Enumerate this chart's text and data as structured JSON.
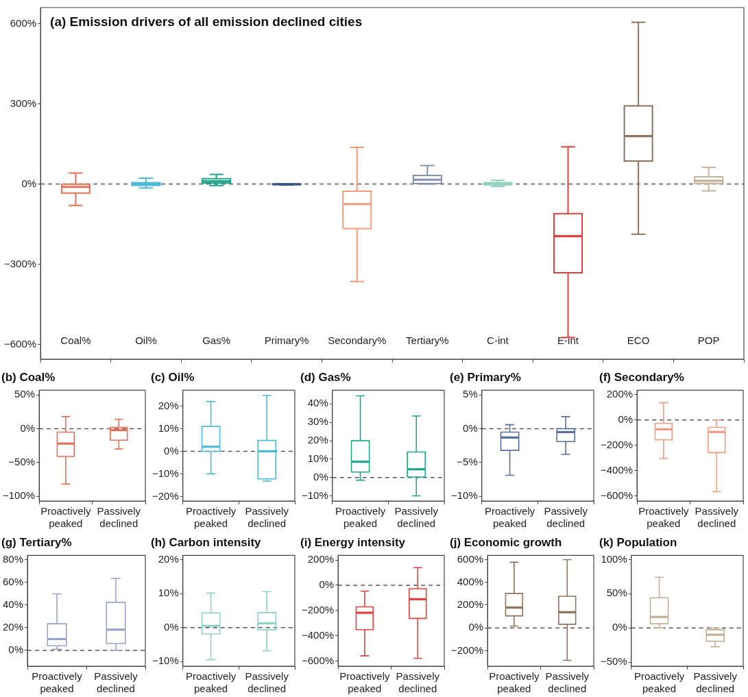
{
  "chart_data": [
    {
      "type": "box",
      "title": "(a) Emission drivers of all emission declined cities",
      "categories": [
        "Coal%",
        "Oil%",
        "Gas%",
        "Primary%",
        "Secondary%",
        "Tertiary%",
        "C-int",
        "E-int",
        "ECO",
        "POP"
      ],
      "boxes": [
        {
          "low": -80,
          "q1": -34,
          "median": -11,
          "q3": -1,
          "high": 41
        },
        {
          "low": -15,
          "q1": -5,
          "median": 0,
          "q3": 5,
          "high": 22
        },
        {
          "low": -6,
          "q1": 3,
          "median": 10,
          "q3": 20,
          "high": 36
        },
        {
          "low": -4,
          "q1": -2,
          "median": -1,
          "q3": 0,
          "high": 1
        },
        {
          "low": -365,
          "q1": -167,
          "median": -75,
          "q3": -27,
          "high": 137
        },
        {
          "low": 0,
          "q1": 2,
          "median": 16,
          "q3": 32,
          "high": 69
        },
        {
          "low": -9,
          "q1": -3,
          "median": 1,
          "q3": 5,
          "high": 14
        },
        {
          "low": -574,
          "q1": -332,
          "median": -195,
          "q3": -111,
          "high": 139
        },
        {
          "low": -188,
          "q1": 86,
          "median": 179,
          "q3": 292,
          "high": 605
        },
        {
          "low": -26,
          "q1": 2,
          "median": 12,
          "q3": 27,
          "high": 62
        }
      ],
      "colors": [
        "#e8705a",
        "#4dbbd5",
        "#1fa68c",
        "#3c5488",
        "#f39b7f",
        "#8491b4",
        "#91d1c2",
        "#e04040",
        "#8c735c",
        "#c4b09a"
      ],
      "ylim": [
        -655,
        660
      ],
      "yticks": [
        {
          "value": -600,
          "label": "−600%"
        },
        {
          "value": -300,
          "label": "−300%"
        },
        {
          "value": 0,
          "label": "0%"
        },
        {
          "value": 300,
          "label": "300%"
        },
        {
          "value": 600,
          "label": "600%"
        }
      ],
      "ref_lines": [
        {
          "axis": "y",
          "value": 0,
          "color": "#555555",
          "line_style": "dashed"
        }
      ]
    },
    {
      "type": "box",
      "title": "(b) Coal%",
      "categories": [
        "Proactively peaked",
        "Passively declined"
      ],
      "boxes": [
        {
          "low": -82,
          "q1": -41,
          "median": -22,
          "q3": -5,
          "high": 18
        },
        {
          "low": -30,
          "q1": -17,
          "median": -2,
          "q3": 2,
          "high": 14
        }
      ],
      "color": "#e8705a",
      "ylim": [
        -107,
        57
      ],
      "yticks": [
        {
          "value": -100,
          "label": "−100%"
        },
        {
          "value": -50,
          "label": "−50%"
        },
        {
          "value": 0,
          "label": "0%"
        },
        {
          "value": 50,
          "label": "50%"
        }
      ],
      "ref_lines": [
        {
          "axis": "y",
          "value": 0,
          "color": "#555555",
          "line_style": "dashed"
        }
      ]
    },
    {
      "type": "box",
      "title": "(c) Oil%",
      "categories": [
        "Proactively peaked",
        "Passively declined"
      ],
      "boxes": [
        {
          "low": -10,
          "q1": 0,
          "median": 2,
          "q3": 11,
          "high": 22
        },
        {
          "low": -13.2,
          "q1": -12.2,
          "median": 0,
          "q3": 4.8,
          "high": 24.7
        }
      ],
      "color": "#4dbbd5",
      "ylim": [
        -22,
        27
      ],
      "yticks": [
        {
          "value": -20,
          "label": "−20%"
        },
        {
          "value": -10,
          "label": "−10%"
        },
        {
          "value": 0,
          "label": "0%"
        },
        {
          "value": 10,
          "label": "10%"
        },
        {
          "value": 20,
          "label": "20%"
        }
      ],
      "ref_lines": [
        {
          "axis": "y",
          "value": 0,
          "color": "#555555",
          "line_style": "dashed"
        }
      ]
    },
    {
      "type": "box",
      "title": "(d) Gas%",
      "categories": [
        "Proactively peaked",
        "Passively declined"
      ],
      "boxes": [
        {
          "low": -1.4,
          "q1": 3,
          "median": 8.6,
          "q3": 20,
          "high": 44.4
        },
        {
          "low": -9.9,
          "q1": 0.3,
          "median": 4.5,
          "q3": 13.9,
          "high": 33.4
        }
      ],
      "color": "#1fa68c",
      "ylim": [
        -12.7,
        47.4
      ],
      "yticks": [
        {
          "value": -10,
          "label": "−10%"
        },
        {
          "value": 0,
          "label": "0%"
        },
        {
          "value": 10,
          "label": "10%"
        },
        {
          "value": 20,
          "label": "20%"
        },
        {
          "value": 30,
          "label": "30%"
        },
        {
          "value": 40,
          "label": "40%"
        }
      ],
      "ref_lines": [
        {
          "axis": "y",
          "value": 0,
          "color": "#555555",
          "line_style": "dashed"
        }
      ]
    },
    {
      "type": "box",
      "title": "(e) Primary%",
      "categories": [
        "Proactively peaked",
        "Passively declined"
      ],
      "boxes": [
        {
          "low": -6.9,
          "q1": -3.2,
          "median": -1.3,
          "q3": -0.5,
          "high": 0.6
        },
        {
          "low": -3.8,
          "q1": -1.9,
          "median": -0.5,
          "q3": 0,
          "high": 1.8
        }
      ],
      "color": "#5a6e9c",
      "ylim": [
        -10.7,
        5.7
      ],
      "yticks": [
        {
          "value": -10,
          "label": "−10%"
        },
        {
          "value": -5,
          "label": "−5%"
        },
        {
          "value": 0,
          "label": "0%"
        },
        {
          "value": 5,
          "label": "5%"
        }
      ],
      "ref_lines": [
        {
          "axis": "y",
          "value": 0,
          "color": "#555555",
          "line_style": "dashed"
        }
      ]
    },
    {
      "type": "box",
      "title": "(f) Secondary%",
      "categories": [
        "Proactively peaked",
        "Passively declined"
      ],
      "boxes": [
        {
          "low": -305,
          "q1": -157,
          "median": -74,
          "q3": -27,
          "high": 136
        },
        {
          "low": -567,
          "q1": -258,
          "median": -95,
          "q3": -58,
          "high": 0
        }
      ],
      "color": "#f39b7f",
      "ylim": [
        -641,
        235
      ],
      "yticks": [
        {
          "value": -600,
          "label": "−600%"
        },
        {
          "value": -400,
          "label": "−400%"
        },
        {
          "value": -200,
          "label": "−200%"
        },
        {
          "value": 0,
          "label": "0%"
        },
        {
          "value": 200,
          "label": "200%"
        }
      ],
      "ref_lines": [
        {
          "axis": "y",
          "value": 0,
          "color": "#555555",
          "line_style": "dashed"
        }
      ]
    },
    {
      "type": "box",
      "title": "(g) Tertiary%",
      "categories": [
        "Proactively peaked",
        "Passively declined"
      ],
      "boxes": [
        {
          "low": 1,
          "q1": 4,
          "median": 10,
          "q3": 23.5,
          "high": 50
        },
        {
          "low": 0,
          "q1": 6,
          "median": 18.3,
          "q3": 42.5,
          "high": 63.6
        }
      ],
      "color": "#9aa3c8",
      "ylim": [
        -14,
        84
      ],
      "yticks": [
        {
          "value": 0,
          "label": "0%"
        },
        {
          "value": 20,
          "label": "20%"
        },
        {
          "value": 40,
          "label": "40%"
        },
        {
          "value": 60,
          "label": "60%"
        },
        {
          "value": 80,
          "label": "80%"
        }
      ],
      "ref_lines": [
        {
          "axis": "y",
          "value": 0,
          "color": "#555555",
          "line_style": "dashed"
        }
      ]
    },
    {
      "type": "box",
      "title": "(h) Carbon intensity",
      "categories": [
        "Proactively peaked",
        "Passively declined"
      ],
      "boxes": [
        {
          "low": -9.5,
          "q1": -1.9,
          "median": 0.5,
          "q3": 4.3,
          "high": 10.2
        },
        {
          "low": -6.9,
          "q1": -0.7,
          "median": 1.25,
          "q3": 4.4,
          "high": 10.6
        }
      ],
      "color": "#91d1c2",
      "ylim": [
        -11.4,
        21.3
      ],
      "yticks": [
        {
          "value": -10,
          "label": "−10%"
        },
        {
          "value": 0,
          "label": "0%"
        },
        {
          "value": 10,
          "label": "10%"
        },
        {
          "value": 20,
          "label": "20%"
        }
      ],
      "ref_lines": [
        {
          "axis": "y",
          "value": 0,
          "color": "#555555",
          "line_style": "dashed"
        }
      ]
    },
    {
      "type": "box",
      "title": "(i) Energy intensity",
      "categories": [
        "Proactively peaked",
        "Passively declined"
      ],
      "boxes": [
        {
          "low": -557,
          "q1": -351,
          "median": -217,
          "q3": -171,
          "high": -46
        },
        {
          "low": -577,
          "q1": -262,
          "median": -110,
          "q3": -27,
          "high": 139
        }
      ],
      "color": "#e04040",
      "ylim": [
        -639,
        236
      ],
      "yticks": [
        {
          "value": -600,
          "label": "−600%"
        },
        {
          "value": -400,
          "label": "−400%"
        },
        {
          "value": -200,
          "label": "−200%"
        },
        {
          "value": 0,
          "label": "0%"
        },
        {
          "value": 200,
          "label": "200%"
        }
      ],
      "ref_lines": [
        {
          "axis": "y",
          "value": 0,
          "color": "#555555",
          "line_style": "dashed"
        }
      ]
    },
    {
      "type": "box",
      "title": "(j) Economic growth",
      "categories": [
        "Proactively peaked",
        "Passively declined"
      ],
      "boxes": [
        {
          "low": 16,
          "q1": 106,
          "median": 179,
          "q3": 303,
          "high": 577
        },
        {
          "low": -285,
          "q1": 32,
          "median": 138,
          "q3": 278,
          "high": 600
        }
      ],
      "color": "#8c735c",
      "ylim": [
        -336,
        637
      ],
      "yticks": [
        {
          "value": -200,
          "label": "−200%"
        },
        {
          "value": 0,
          "label": "0%"
        },
        {
          "value": 200,
          "label": "200%"
        },
        {
          "value": 400,
          "label": "400%"
        },
        {
          "value": 600,
          "label": "600%"
        }
      ],
      "ref_lines": [
        {
          "axis": "y",
          "value": 0,
          "color": "#555555",
          "line_style": "dashed"
        }
      ]
    },
    {
      "type": "box",
      "title": "(k) Population",
      "categories": [
        "Proactively peaked",
        "Passively declined"
      ],
      "boxes": [
        {
          "low": 0,
          "q1": 6,
          "median": 16,
          "q3": 44,
          "high": 74
        },
        {
          "low": -27.6,
          "q1": -19.5,
          "median": -10,
          "q3": -2.7,
          "high": -0.5
        }
      ],
      "color": "#c4b09a",
      "ylim": [
        -56,
        106
      ],
      "yticks": [
        {
          "value": -50,
          "label": "−50%"
        },
        {
          "value": 0,
          "label": "0%"
        },
        {
          "value": 50,
          "label": "50%"
        },
        {
          "value": 100,
          "label": "100%"
        }
      ],
      "ref_lines": [
        {
          "axis": "y",
          "value": 0,
          "color": "#555555",
          "line_style": "dashed"
        }
      ]
    }
  ]
}
